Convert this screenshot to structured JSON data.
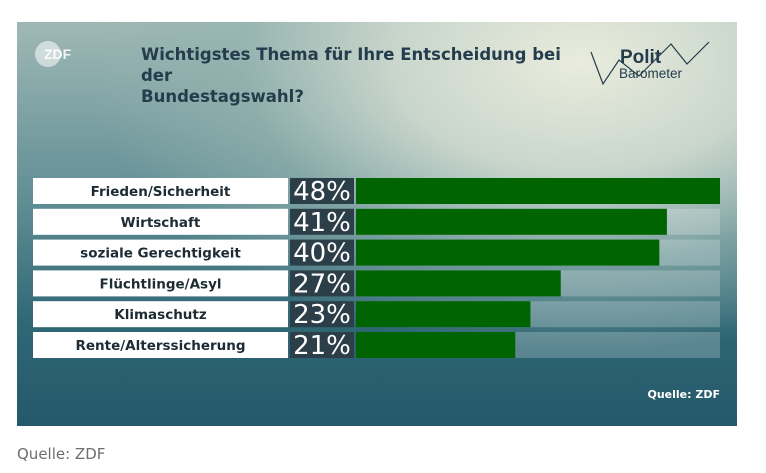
{
  "chart_data": {
    "type": "bar",
    "orientation": "horizontal",
    "title": "Wichtigstes Thema für Ihre Entscheidung bei der Bundestagswahl?",
    "title_lines": [
      "Wichtigstes Thema für Ihre Entscheidung bei der",
      "Bundestagswahl?"
    ],
    "categories": [
      "Frieden/Sicherheit",
      "Wirtschaft",
      "soziale Gerechtigkeit",
      "Flüchtlinge/Asyl",
      "Klimaschutz",
      "Rente/Alterssicherung"
    ],
    "values": [
      48,
      41,
      40,
      27,
      23,
      21
    ],
    "value_labels": [
      "48%",
      "41%",
      "40%",
      "27%",
      "23%",
      "21%"
    ],
    "unit": "%",
    "xlim": [
      0,
      48
    ],
    "grid": false,
    "legend": "none",
    "colors": {
      "bar": "#006400",
      "label_box": "#ffffff",
      "value_box": "#2c3e48",
      "track": "rgba(255,255,255,0.22)"
    }
  },
  "logos": {
    "zdf": "ZDF",
    "polit": "Polit",
    "barometer": "Barometer"
  },
  "source_inner": "Quelle: ZDF",
  "source_outer": "Quelle: ZDF"
}
